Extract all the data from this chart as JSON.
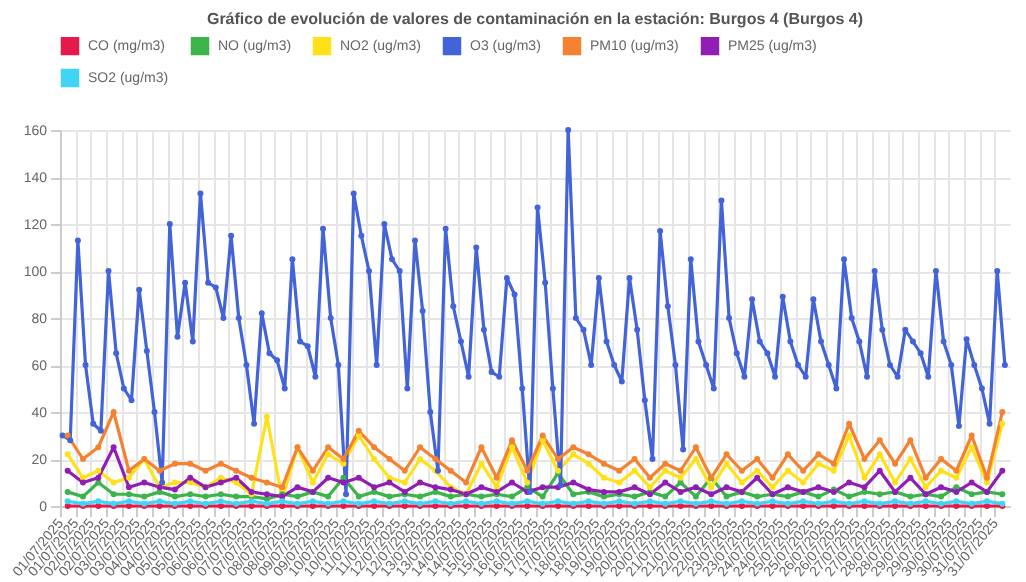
{
  "chart_data": {
    "type": "line",
    "title": "Gráfico de evolución de valores de contaminación en la estación: Burgos 4 (Burgos 4)",
    "xlim": [
      "2025-07-01T00:00",
      "2025-08-01T00:00"
    ],
    "ylim": [
      0,
      160
    ],
    "yticks": [
      0,
      20,
      40,
      60,
      80,
      100,
      120,
      140,
      160
    ],
    "xticks": [
      {
        "value": "2025-07-01T00:00",
        "label": "01/07/2025"
      },
      {
        "value": "2025-07-01T12:00",
        "label": "01/07/2025"
      },
      {
        "value": "2025-07-02T00:00",
        "label": "02/07/2025"
      },
      {
        "value": "2025-07-02T12:00",
        "label": "02/07/2025"
      },
      {
        "value": "2025-07-03T00:00",
        "label": "03/07/2025"
      },
      {
        "value": "2025-07-03T12:00",
        "label": "03/07/2025"
      },
      {
        "value": "2025-07-04T00:00",
        "label": "04/07/2025"
      },
      {
        "value": "2025-07-04T12:00",
        "label": "04/07/2025"
      },
      {
        "value": "2025-07-05T00:00",
        "label": "05/07/2025"
      },
      {
        "value": "2025-07-05T12:00",
        "label": "05/07/2025"
      },
      {
        "value": "2025-07-06T00:00",
        "label": "06/07/2025"
      },
      {
        "value": "2025-07-06T12:00",
        "label": "06/07/2025"
      },
      {
        "value": "2025-07-07T00:00",
        "label": "07/07/2025"
      },
      {
        "value": "2025-07-07T12:00",
        "label": "07/07/2025"
      },
      {
        "value": "2025-07-08T00:00",
        "label": "08/07/2025"
      },
      {
        "value": "2025-07-08T12:00",
        "label": "08/07/2025"
      },
      {
        "value": "2025-07-09T00:00",
        "label": "09/07/2025"
      },
      {
        "value": "2025-07-09T12:00",
        "label": "09/07/2025"
      },
      {
        "value": "2025-07-10T00:00",
        "label": "10/07/2025"
      },
      {
        "value": "2025-07-10T12:00",
        "label": "10/07/2025"
      },
      {
        "value": "2025-07-11T00:00",
        "label": "11/07/2025"
      },
      {
        "value": "2025-07-11T12:00",
        "label": "11/07/2025"
      },
      {
        "value": "2025-07-12T00:00",
        "label": "12/07/2025"
      },
      {
        "value": "2025-07-12T12:00",
        "label": "12/07/2025"
      },
      {
        "value": "2025-07-13T00:00",
        "label": "13/07/2025"
      },
      {
        "value": "2025-07-13T12:00",
        "label": "13/07/2025"
      },
      {
        "value": "2025-07-14T00:00",
        "label": "14/07/2025"
      },
      {
        "value": "2025-07-14T12:00",
        "label": "14/07/2025"
      },
      {
        "value": "2025-07-15T00:00",
        "label": "15/07/2025"
      },
      {
        "value": "2025-07-15T12:00",
        "label": "15/07/2025"
      },
      {
        "value": "2025-07-16T00:00",
        "label": "16/07/2025"
      },
      {
        "value": "2025-07-16T12:00",
        "label": "16/07/2025"
      },
      {
        "value": "2025-07-17T00:00",
        "label": "17/07/2025"
      },
      {
        "value": "2025-07-17T12:00",
        "label": "17/07/2025"
      },
      {
        "value": "2025-07-18T00:00",
        "label": "18/07/2025"
      },
      {
        "value": "2025-07-18T12:00",
        "label": "18/07/2025"
      },
      {
        "value": "2025-07-19T00:00",
        "label": "19/07/2025"
      },
      {
        "value": "2025-07-19T12:00",
        "label": "19/07/2025"
      },
      {
        "value": "2025-07-20T00:00",
        "label": "20/07/2025"
      },
      {
        "value": "2025-07-20T12:00",
        "label": "20/07/2025"
      },
      {
        "value": "2025-07-21T00:00",
        "label": "21/07/2025"
      },
      {
        "value": "2025-07-21T12:00",
        "label": "21/07/2025"
      },
      {
        "value": "2025-07-22T00:00",
        "label": "22/07/2025"
      },
      {
        "value": "2025-07-22T12:00",
        "label": "22/07/2025"
      },
      {
        "value": "2025-07-23T00:00",
        "label": "23/07/2025"
      },
      {
        "value": "2025-07-23T12:00",
        "label": "23/07/2025"
      },
      {
        "value": "2025-07-24T00:00",
        "label": "24/07/2025"
      },
      {
        "value": "2025-07-24T12:00",
        "label": "24/07/2025"
      },
      {
        "value": "2025-07-25T00:00",
        "label": "25/07/2025"
      },
      {
        "value": "2025-07-25T12:00",
        "label": "25/07/2025"
      },
      {
        "value": "2025-07-26T00:00",
        "label": "26/07/2025"
      },
      {
        "value": "2025-07-26T12:00",
        "label": "26/07/2025"
      },
      {
        "value": "2025-07-27T00:00",
        "label": "27/07/2025"
      },
      {
        "value": "2025-07-27T12:00",
        "label": "27/07/2025"
      },
      {
        "value": "2025-07-28T00:00",
        "label": "28/07/2025"
      },
      {
        "value": "2025-07-28T12:00",
        "label": "28/07/2025"
      },
      {
        "value": "2025-07-29T00:00",
        "label": "29/07/2025"
      },
      {
        "value": "2025-07-29T12:00",
        "label": "29/07/2025"
      },
      {
        "value": "2025-07-30T00:00",
        "label": "30/07/2025"
      },
      {
        "value": "2025-07-30T12:00",
        "label": "30/07/2025"
      },
      {
        "value": "2025-07-31T00:00",
        "label": "31/07/2025"
      },
      {
        "value": "2025-07-31T12:00",
        "label": "31/07/2025"
      }
    ],
    "grid": true,
    "legend": "top",
    "marker": "circle",
    "line_style": "solid",
    "x": [
      "2025-07-01T06:00",
      "2025-07-01T18:00",
      "2025-07-02T06:00",
      "2025-07-02T18:00",
      "2025-07-03T06:00",
      "2025-07-03T18:00",
      "2025-07-04T06:00",
      "2025-07-04T18:00",
      "2025-07-05T06:00",
      "2025-07-05T18:00",
      "2025-07-06T06:00",
      "2025-07-06T18:00",
      "2025-07-07T06:00",
      "2025-07-07T18:00",
      "2025-07-08T06:00",
      "2025-07-08T18:00",
      "2025-07-09T06:00",
      "2025-07-09T18:00",
      "2025-07-10T06:00",
      "2025-07-10T18:00",
      "2025-07-11T06:00",
      "2025-07-11T18:00",
      "2025-07-12T06:00",
      "2025-07-12T18:00",
      "2025-07-13T06:00",
      "2025-07-13T18:00",
      "2025-07-14T06:00",
      "2025-07-14T18:00",
      "2025-07-15T06:00",
      "2025-07-15T18:00",
      "2025-07-16T06:00",
      "2025-07-16T18:00",
      "2025-07-17T06:00",
      "2025-07-17T18:00",
      "2025-07-18T06:00",
      "2025-07-18T18:00",
      "2025-07-19T06:00",
      "2025-07-19T18:00",
      "2025-07-20T06:00",
      "2025-07-20T18:00",
      "2025-07-21T06:00",
      "2025-07-21T18:00",
      "2025-07-22T06:00",
      "2025-07-22T18:00",
      "2025-07-23T06:00",
      "2025-07-23T18:00",
      "2025-07-24T06:00",
      "2025-07-24T18:00",
      "2025-07-25T06:00",
      "2025-07-25T18:00",
      "2025-07-26T06:00",
      "2025-07-26T18:00",
      "2025-07-27T06:00",
      "2025-07-27T18:00",
      "2025-07-28T06:00",
      "2025-07-28T18:00",
      "2025-07-29T06:00",
      "2025-07-29T18:00",
      "2025-07-30T06:00",
      "2025-07-30T18:00",
      "2025-07-31T06:00",
      "2025-07-31T18:00"
    ],
    "series": [
      {
        "name": "CO (mg/m3)",
        "color": "#e6194b",
        "values": [
          0,
          0,
          0,
          0,
          0,
          0,
          0,
          0,
          0,
          0,
          0,
          0,
          0,
          0,
          0,
          0,
          0,
          0,
          0,
          0,
          0,
          0,
          0,
          0,
          0,
          0,
          0,
          0,
          0,
          0,
          0,
          0,
          0,
          0,
          0,
          0,
          0,
          0,
          0,
          0,
          0,
          0,
          0,
          0,
          0,
          0,
          0,
          0,
          0,
          0,
          0,
          0,
          0,
          0,
          0,
          0,
          0,
          0,
          0,
          0,
          0,
          0
        ]
      },
      {
        "name": "NO (ug/m3)",
        "color": "#3cb44b",
        "values": [
          6,
          4,
          10,
          5,
          5,
          4,
          6,
          4,
          5,
          4,
          5,
          4,
          4,
          3,
          5,
          4,
          6,
          4,
          12,
          4,
          6,
          4,
          5,
          4,
          6,
          4,
          5,
          4,
          5,
          4,
          8,
          4,
          14,
          5,
          6,
          4,
          5,
          4,
          6,
          4,
          10,
          4,
          12,
          4,
          6,
          4,
          5,
          4,
          6,
          4,
          7,
          4,
          6,
          5,
          6,
          4,
          5,
          4,
          8,
          5,
          6,
          5
        ]
      },
      {
        "name": "NO2 (ug/m3)",
        "color": "#ffe119",
        "values": [
          22,
          12,
          15,
          10,
          12,
          20,
          8,
          10,
          10,
          8,
          12,
          10,
          5,
          38,
          3,
          25,
          10,
          22,
          18,
          30,
          20,
          12,
          10,
          20,
          15,
          8,
          5,
          18,
          8,
          25,
          10,
          28,
          15,
          22,
          18,
          12,
          10,
          15,
          8,
          15,
          12,
          20,
          8,
          18,
          10,
          15,
          8,
          15,
          10,
          18,
          15,
          30,
          12,
          22,
          10,
          20,
          8,
          15,
          12,
          25,
          10,
          35
        ]
      },
      {
        "name": "O3 (ug/m3)",
        "color": "#4363d8",
        "x": [
          "2025-07-01T02:00",
          "2025-07-01T08:00",
          "2025-07-01T14:00",
          "2025-07-01T20:00",
          "2025-07-02T02:00",
          "2025-07-02T08:00",
          "2025-07-02T14:00",
          "2025-07-02T20:00",
          "2025-07-03T02:00",
          "2025-07-03T08:00",
          "2025-07-03T14:00",
          "2025-07-03T20:00",
          "2025-07-04T02:00",
          "2025-07-04T08:00",
          "2025-07-04T14:00",
          "2025-07-04T20:00",
          "2025-07-05T02:00",
          "2025-07-05T08:00",
          "2025-07-05T14:00",
          "2025-07-05T20:00",
          "2025-07-06T02:00",
          "2025-07-06T08:00",
          "2025-07-06T14:00",
          "2025-07-06T20:00",
          "2025-07-07T02:00",
          "2025-07-07T08:00",
          "2025-07-07T14:00",
          "2025-07-07T20:00",
          "2025-07-08T02:00",
          "2025-07-08T08:00",
          "2025-07-08T14:00",
          "2025-07-08T20:00",
          "2025-07-09T02:00",
          "2025-07-09T08:00",
          "2025-07-09T14:00",
          "2025-07-09T20:00",
          "2025-07-10T02:00",
          "2025-07-10T08:00",
          "2025-07-10T14:00",
          "2025-07-10T20:00",
          "2025-07-11T02:00",
          "2025-07-11T08:00",
          "2025-07-11T14:00",
          "2025-07-11T20:00",
          "2025-07-12T02:00",
          "2025-07-12T08:00",
          "2025-07-12T14:00",
          "2025-07-12T20:00",
          "2025-07-13T02:00",
          "2025-07-13T08:00",
          "2025-07-13T14:00",
          "2025-07-13T20:00",
          "2025-07-14T02:00",
          "2025-07-14T08:00",
          "2025-07-14T14:00",
          "2025-07-14T20:00",
          "2025-07-15T02:00",
          "2025-07-15T08:00",
          "2025-07-15T14:00",
          "2025-07-15T20:00",
          "2025-07-16T02:00",
          "2025-07-16T08:00",
          "2025-07-16T14:00",
          "2025-07-16T20:00",
          "2025-07-17T02:00",
          "2025-07-17T08:00",
          "2025-07-17T14:00",
          "2025-07-17T20:00",
          "2025-07-18T02:00",
          "2025-07-18T08:00",
          "2025-07-18T14:00",
          "2025-07-18T20:00",
          "2025-07-19T02:00",
          "2025-07-19T08:00",
          "2025-07-19T14:00",
          "2025-07-19T20:00",
          "2025-07-20T02:00",
          "2025-07-20T08:00",
          "2025-07-20T14:00",
          "2025-07-20T20:00",
          "2025-07-21T02:00",
          "2025-07-21T08:00",
          "2025-07-21T14:00",
          "2025-07-21T20:00",
          "2025-07-22T02:00",
          "2025-07-22T08:00",
          "2025-07-22T14:00",
          "2025-07-22T20:00",
          "2025-07-23T02:00",
          "2025-07-23T08:00",
          "2025-07-23T14:00",
          "2025-07-23T20:00",
          "2025-07-24T02:00",
          "2025-07-24T08:00",
          "2025-07-24T14:00",
          "2025-07-24T20:00",
          "2025-07-25T02:00",
          "2025-07-25T08:00",
          "2025-07-25T14:00",
          "2025-07-25T20:00",
          "2025-07-26T02:00",
          "2025-07-26T08:00",
          "2025-07-26T14:00",
          "2025-07-26T20:00",
          "2025-07-27T02:00",
          "2025-07-27T08:00",
          "2025-07-27T14:00",
          "2025-07-27T20:00",
          "2025-07-28T02:00",
          "2025-07-28T08:00",
          "2025-07-28T14:00",
          "2025-07-28T20:00",
          "2025-07-29T02:00",
          "2025-07-29T08:00",
          "2025-07-29T14:00",
          "2025-07-29T20:00",
          "2025-07-30T02:00",
          "2025-07-30T08:00",
          "2025-07-30T14:00",
          "2025-07-30T20:00",
          "2025-07-31T02:00",
          "2025-07-31T08:00",
          "2025-07-31T14:00",
          "2025-07-31T20:00"
        ],
        "values": [
          30,
          28,
          113,
          60,
          35,
          32,
          100,
          65,
          50,
          45,
          92,
          66,
          40,
          10,
          120,
          72,
          95,
          70,
          133,
          95,
          93,
          80,
          115,
          80,
          60,
          35,
          82,
          65,
          62,
          50,
          105,
          70,
          68,
          55,
          118,
          80,
          60,
          5,
          133,
          115,
          100,
          60,
          120,
          105,
          100,
          50,
          113,
          83,
          40,
          15,
          118,
          85,
          70,
          55,
          110,
          75,
          57,
          55,
          97,
          90,
          50,
          6,
          127,
          95,
          50,
          9,
          160,
          80,
          75,
          60,
          97,
          70,
          60,
          53,
          97,
          75,
          45,
          20,
          117,
          85,
          60,
          24,
          105,
          70,
          60,
          50,
          130,
          80,
          65,
          55,
          88,
          70,
          65,
          55,
          89,
          70,
          60,
          55,
          88,
          70,
          60,
          50,
          105,
          80,
          70,
          55,
          100,
          75,
          60,
          55,
          75,
          70,
          65,
          55,
          100,
          70,
          60,
          34,
          71,
          60,
          50,
          35,
          100,
          60
        ]
      },
      {
        "name": "PM10 (ug/m3)",
        "color": "#f58231",
        "values": [
          30,
          20,
          25,
          40,
          15,
          20,
          15,
          18,
          18,
          15,
          18,
          15,
          12,
          10,
          8,
          25,
          15,
          25,
          20,
          32,
          25,
          20,
          15,
          25,
          20,
          15,
          10,
          25,
          12,
          28,
          15,
          30,
          20,
          25,
          22,
          18,
          15,
          20,
          12,
          18,
          15,
          25,
          12,
          22,
          15,
          20,
          12,
          22,
          15,
          22,
          18,
          35,
          20,
          28,
          18,
          28,
          12,
          20,
          15,
          30,
          12,
          40
        ]
      },
      {
        "name": "PM25 (ug/m3)",
        "color": "#911eb4",
        "values": [
          15,
          10,
          12,
          25,
          8,
          10,
          8,
          7,
          12,
          8,
          10,
          12,
          6,
          5,
          4,
          8,
          6,
          12,
          10,
          12,
          8,
          10,
          6,
          10,
          8,
          7,
          5,
          8,
          6,
          10,
          6,
          8,
          8,
          10,
          7,
          6,
          6,
          8,
          5,
          10,
          6,
          8,
          5,
          8,
          6,
          12,
          5,
          8,
          6,
          8,
          6,
          10,
          8,
          15,
          6,
          12,
          5,
          8,
          6,
          10,
          6,
          15
        ]
      },
      {
        "name": "SO2 (ug/m3)",
        "color": "#42d4f4",
        "values": [
          2,
          1,
          2,
          1,
          2,
          1,
          2,
          1,
          2,
          1,
          2,
          1,
          2,
          1,
          2,
          1,
          2,
          1,
          2,
          1,
          2,
          1,
          2,
          1,
          2,
          1,
          2,
          1,
          2,
          1,
          2,
          1,
          2,
          1,
          2,
          1,
          2,
          1,
          2,
          1,
          2,
          1,
          2,
          1,
          2,
          1,
          2,
          1,
          2,
          1,
          2,
          1,
          2,
          1,
          2,
          1,
          2,
          1,
          2,
          1,
          2,
          1
        ]
      }
    ]
  }
}
